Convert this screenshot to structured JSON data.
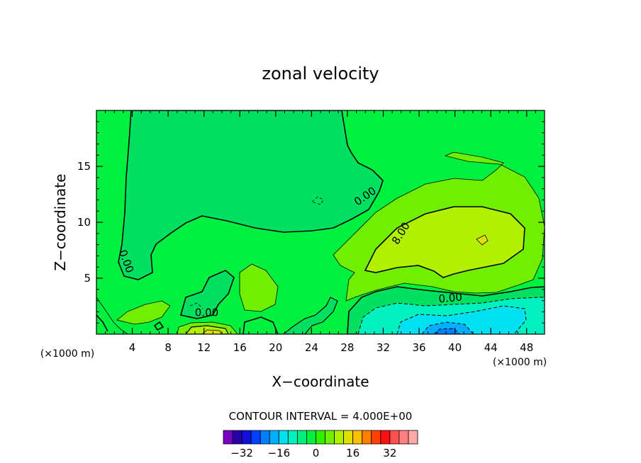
{
  "chart_data": {
    "type": "heatmap",
    "title": "zonal velocity",
    "xlabel": "X−coordinate",
    "ylabel": "Z−coordinate",
    "x_unit": "(×1000 m)",
    "x_unit_right": "(×1000 m)",
    "xlim": [
      0,
      50
    ],
    "ylim": [
      0,
      20
    ],
    "x_ticks": [
      "4",
      "8",
      "12",
      "16",
      "20",
      "24",
      "28",
      "32",
      "36",
      "40",
      "44",
      "48"
    ],
    "y_ticks": [
      "5",
      "10",
      "15"
    ],
    "contour_interval_text": "CONTOUR INTERVAL = 4.000E+00",
    "contour_labels": [
      {
        "text": "0.00",
        "x": 3.3,
        "z": 6.5,
        "angle": 70
      },
      {
        "text": "0.00",
        "x": 12.3,
        "z": 1.9,
        "angle": 0
      },
      {
        "text": "0.00",
        "x": 30.0,
        "z": 12.3,
        "angle": -35
      },
      {
        "text": "8.00",
        "x": 34.0,
        "z": 9.0,
        "angle": -58
      },
      {
        "text": "0.00",
        "x": 39.5,
        "z": 3.2,
        "angle": -5
      }
    ],
    "colorbar": {
      "colors": [
        "#7a00c0",
        "#2a00a8",
        "#1010d8",
        "#0040ff",
        "#0080ff",
        "#00b0ff",
        "#00e0f0",
        "#00f0c0",
        "#00f080",
        "#00f040",
        "#30f000",
        "#70f000",
        "#b0f000",
        "#e0e000",
        "#ffc000",
        "#ff8000",
        "#ff4000",
        "#ff1010",
        "#ff5050",
        "#ff8080",
        "#ffa8a8"
      ],
      "tick_labels": [
        "−32",
        "−16",
        "0",
        "16",
        "32"
      ]
    }
  }
}
